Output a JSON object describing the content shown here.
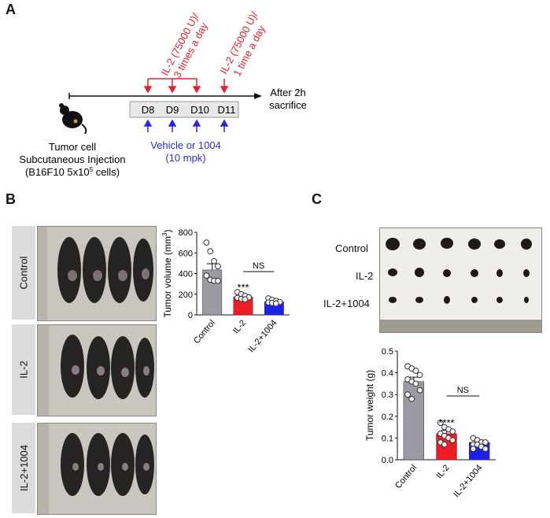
{
  "panel_labels": {
    "a": "A",
    "b": "B",
    "c": "C"
  },
  "schedule": {
    "il2_multi": [
      "IL-2 (75000 U)/",
      "3 times a day"
    ],
    "il2_single": [
      "IL-2 (75000 U)/",
      "1 time a day"
    ],
    "days": [
      "D8",
      "D9",
      "D10",
      "D11"
    ],
    "after": [
      "After 2h",
      "sacrifice"
    ],
    "injection": [
      "Tumor cell",
      "Subcutaneous Injection",
      "(B16F10 5x10",
      "5",
      " cells)"
    ],
    "treatment": [
      "Vehicle or 1004",
      "(10 mpk)"
    ],
    "colors": {
      "il2": "#e8202a",
      "treatment": "#2a2ad6"
    }
  },
  "photo_labels_b": [
    "Control",
    "IL-2",
    "IL-2+1004"
  ],
  "photo_labels_c": [
    "Control",
    "IL-2",
    "IL-2+1004"
  ],
  "chart_data": [
    {
      "type": "bar",
      "ylabel": "Tumor volume (mm",
      "ylabel_sup": "3",
      "ylabel_end": ")",
      "categories": [
        "Control",
        "IL-2",
        "IL-2+1004"
      ],
      "values": [
        435,
        175,
        128
      ],
      "sem": [
        60,
        20,
        15
      ],
      "ylim": [
        0,
        800
      ],
      "yticks": [
        "0",
        "200",
        "400",
        "600",
        "800"
      ],
      "colors": [
        "#9b9ba3",
        "#ee1c24",
        "#1e22e8"
      ],
      "points": [
        [
          700,
          615,
          520,
          470,
          380,
          340,
          330,
          330
        ],
        [
          220,
          200,
          185,
          170,
          165,
          155,
          150
        ],
        [
          160,
          145,
          135,
          125,
          120,
          115,
          110
        ]
      ],
      "significance": "***",
      "ns": "NS"
    },
    {
      "type": "bar",
      "ylabel": "Tumor weight (g)",
      "categories": [
        "Control",
        "IL-2",
        "IL-2+1004"
      ],
      "values": [
        0.36,
        0.12,
        0.08
      ],
      "sem": [
        0.02,
        0.015,
        0.01
      ],
      "ylim": [
        0,
        0.5
      ],
      "yticks": [
        "0.0",
        "0.1",
        "0.2",
        "0.3",
        "0.4",
        "0.5"
      ],
      "colors": [
        "#9b9ba3",
        "#ee1c24",
        "#1e22e8"
      ],
      "points": [
        [
          0.43,
          0.42,
          0.41,
          0.39,
          0.37,
          0.36,
          0.35,
          0.32,
          0.3,
          0.28
        ],
        [
          0.17,
          0.15,
          0.14,
          0.13,
          0.12,
          0.11,
          0.1,
          0.09,
          0.08,
          0.07
        ],
        [
          0.1,
          0.09,
          0.08,
          0.08,
          0.07,
          0.07,
          0.06,
          0.05,
          0.05
        ]
      ],
      "significance": "****",
      "ns": "NS"
    }
  ]
}
